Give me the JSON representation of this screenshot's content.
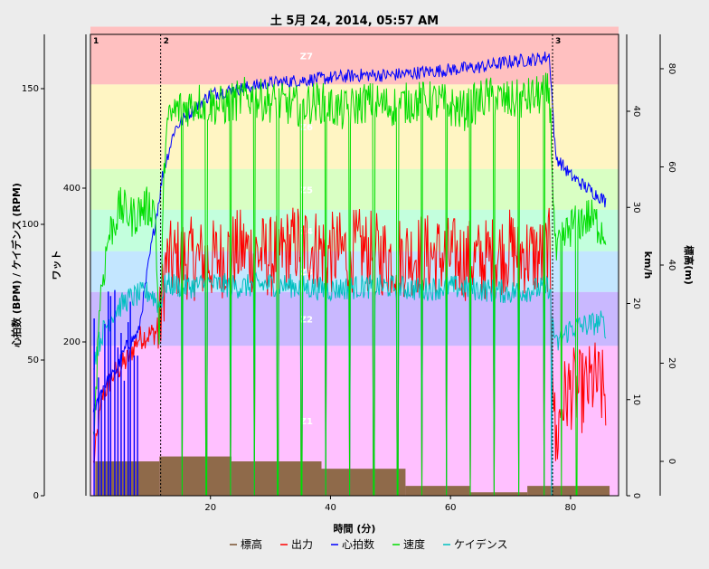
{
  "chart_data": {
    "type": "line",
    "title": "土 5月 24, 2014, 05:57 AM",
    "xlabel": "時間 (分)",
    "xlim": [
      0,
      88
    ],
    "x_ticks": [
      20,
      40,
      60,
      80
    ],
    "axes": {
      "hr_cad": {
        "label": "心拍数 (BPM) / ケイデンス (RPM)",
        "lim": [
          0,
          170
        ],
        "ticks": [
          0,
          50,
          100,
          150
        ]
      },
      "watts": {
        "label": "ワット",
        "lim": [
          0,
          600
        ],
        "ticks": [
          200,
          400
        ]
      },
      "kmh": {
        "label": "km/h",
        "lim": [
          0,
          48
        ],
        "ticks": [
          0,
          10,
          20,
          30,
          40
        ]
      },
      "alt": {
        "label": "標高(m)",
        "lim": [
          -7,
          87
        ],
        "ticks": [
          0,
          20,
          40,
          60,
          80
        ]
      }
    },
    "zones": [
      {
        "name": "Z1",
        "from": 0,
        "to": 195,
        "color": "#ffc0ff"
      },
      {
        "name": "Z2",
        "from": 195,
        "to": 265,
        "color": "#c9b8ff"
      },
      {
        "name": "Z3",
        "from": 265,
        "to": 318,
        "color": "#c3e6ff"
      },
      {
        "name": "Z4",
        "from": 318,
        "to": 372,
        "color": "#c3ffdd"
      },
      {
        "name": "Z5",
        "from": 372,
        "to": 425,
        "color": "#d9ffc3"
      },
      {
        "name": "Z6",
        "from": 425,
        "to": 535,
        "color": "#fff5c3"
      },
      {
        "name": "Z7",
        "from": 535,
        "to": 610,
        "color": "#ffc0c0"
      }
    ],
    "intervals": [
      {
        "label": "1",
        "x": 0
      },
      {
        "label": "2",
        "x": 11.7
      },
      {
        "label": "3",
        "x": 77
      }
    ],
    "altitude_steps": [
      {
        "x0": 0.8,
        "x1": 11.5,
        "alt": 0
      },
      {
        "x0": 11.5,
        "x1": 23.5,
        "alt": 1
      },
      {
        "x0": 23.5,
        "x1": 38.5,
        "alt": 0
      },
      {
        "x0": 38.5,
        "x1": 52.5,
        "alt": -1.5
      },
      {
        "x0": 52.5,
        "x1": 63.2,
        "alt": -5
      },
      {
        "x0": 63.2,
        "x1": 72.8,
        "alt": -6.3
      },
      {
        "x0": 72.8,
        "x1": 86.5,
        "alt": -5
      }
    ],
    "series": [
      {
        "name": "標高",
        "color": "#7a5230",
        "axis": "alt"
      },
      {
        "name": "出力",
        "color": "#ff0000",
        "axis": "watts",
        "points": [
          [
            0.5,
            40
          ],
          [
            2,
            130
          ],
          [
            4,
            160
          ],
          [
            6,
            175
          ],
          [
            8,
            205
          ],
          [
            10,
            210
          ],
          [
            11.5,
            215
          ],
          [
            12.5,
            300
          ],
          [
            15,
            310
          ],
          [
            20,
            305
          ],
          [
            25,
            320
          ],
          [
            30,
            310
          ],
          [
            35,
            330
          ],
          [
            40,
            315
          ],
          [
            45,
            320
          ],
          [
            50,
            310
          ],
          [
            55,
            315
          ],
          [
            60,
            310
          ],
          [
            65,
            305
          ],
          [
            70,
            320
          ],
          [
            75,
            310
          ],
          [
            76.5,
            320
          ],
          [
            77.5,
            60
          ],
          [
            78.5,
            120
          ],
          [
            80,
            140
          ],
          [
            82,
            135
          ],
          [
            84,
            150
          ],
          [
            86,
            130
          ]
        ]
      },
      {
        "name": "心拍数",
        "color": "#0000ff",
        "axis": "hr_cad",
        "points": [
          [
            0.5,
            30
          ],
          [
            2,
            40
          ],
          [
            4,
            45
          ],
          [
            6,
            55
          ],
          [
            8,
            60
          ],
          [
            10,
            90
          ],
          [
            11.5,
            110
          ],
          [
            12,
            118
          ],
          [
            14,
            135
          ],
          [
            16,
            140
          ],
          [
            20,
            148
          ],
          [
            25,
            150
          ],
          [
            30,
            152
          ],
          [
            35,
            153
          ],
          [
            40,
            154
          ],
          [
            45,
            155
          ],
          [
            50,
            155
          ],
          [
            55,
            156
          ],
          [
            60,
            157
          ],
          [
            65,
            158
          ],
          [
            70,
            160
          ],
          [
            75,
            161
          ],
          [
            76.5,
            162
          ],
          [
            77.5,
            125
          ],
          [
            80,
            118
          ],
          [
            83,
            113
          ],
          [
            85,
            110
          ],
          [
            86,
            108
          ]
        ]
      },
      {
        "name": "速度",
        "color": "#00dd00",
        "axis": "kmh",
        "points": [
          [
            0.5,
            5
          ],
          [
            1.5,
            20
          ],
          [
            3,
            27
          ],
          [
            5,
            30
          ],
          [
            7,
            29
          ],
          [
            9,
            30
          ],
          [
            10.8,
            30
          ],
          [
            11.5,
            15
          ],
          [
            12.5,
            38
          ],
          [
            14,
            40
          ],
          [
            18,
            41
          ],
          [
            22,
            40.5
          ],
          [
            26,
            41.5
          ],
          [
            30,
            41
          ],
          [
            34,
            40.5
          ],
          [
            38,
            41
          ],
          [
            42,
            40
          ],
          [
            46,
            41
          ],
          [
            50,
            40.5
          ],
          [
            54,
            41
          ],
          [
            58,
            41
          ],
          [
            62,
            40
          ],
          [
            66,
            41.5
          ],
          [
            70,
            41
          ],
          [
            74,
            41.5
          ],
          [
            76.5,
            42
          ],
          [
            77.5,
            25
          ],
          [
            80,
            28
          ],
          [
            83,
            29
          ],
          [
            85,
            28
          ],
          [
            86,
            27
          ]
        ]
      },
      {
        "name": "ケイデンス",
        "color": "#00c0c0",
        "axis": "hr_cad",
        "points": [
          [
            0.5,
            50
          ],
          [
            2,
            60
          ],
          [
            4,
            68
          ],
          [
            6,
            72
          ],
          [
            8,
            74
          ],
          [
            10,
            75
          ],
          [
            11.5,
            70
          ],
          [
            12.5,
            78
          ],
          [
            16,
            77
          ],
          [
            20,
            78
          ],
          [
            25,
            77
          ],
          [
            30,
            78
          ],
          [
            35,
            77
          ],
          [
            40,
            76
          ],
          [
            45,
            77
          ],
          [
            50,
            77
          ],
          [
            55,
            76
          ],
          [
            60,
            77
          ],
          [
            65,
            76
          ],
          [
            70,
            75
          ],
          [
            74,
            76
          ],
          [
            76.5,
            77
          ],
          [
            77.5,
            55
          ],
          [
            80,
            62
          ],
          [
            83,
            63
          ],
          [
            85,
            64
          ],
          [
            86,
            62
          ]
        ]
      }
    ],
    "speed_drops_x": [
      15.3,
      19.3,
      23.3,
      27.3,
      31.2,
      35.2,
      39.2,
      43.2,
      47.2,
      51.2,
      55.2,
      59.3,
      63.3,
      67.3,
      71.4,
      75.6,
      78.5,
      81,
      86.2
    ],
    "cadence_drops_x": [
      15.3,
      19.3,
      23.3,
      27.3,
      31.2,
      35.2,
      39.2,
      43.2,
      47.2,
      51.2,
      55.2,
      59.3,
      63.3,
      67.3,
      71.4,
      75.6,
      76.8,
      86.2
    ],
    "legend_position": "bottom",
    "grid": false
  },
  "colors": {
    "background": "#ececec",
    "plot_border": "#000000"
  }
}
